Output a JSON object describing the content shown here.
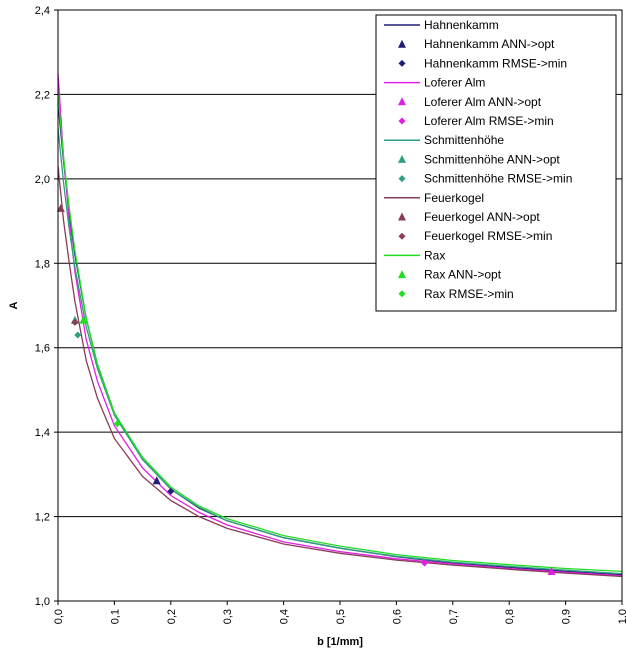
{
  "chart_data": {
    "type": "line",
    "xlabel": "b [1/mm]",
    "ylabel": "A",
    "xlim": [
      0,
      1
    ],
    "ylim": [
      1.0,
      2.4
    ],
    "x_ticks": [
      "0,0",
      "0,1",
      "0,2",
      "0,3",
      "0,4",
      "0,5",
      "0,6",
      "0,7",
      "0,8",
      "0,9",
      "1,0"
    ],
    "y_ticks": [
      "1,0",
      "1,2",
      "1,4",
      "1,6",
      "1,8",
      "2,0",
      "2,2",
      "2,4"
    ],
    "grid": "horizontal major gridlines",
    "legend_position": "top-right",
    "colors": {
      "Hahnenkamm": "#1f1f7a",
      "Loferer Alm": "#e020e0",
      "Schmittenhöhe": "#2e9e82",
      "Feuerkogel": "#8b3a5a",
      "Rax": "#22dd22"
    },
    "curves": [
      {
        "station": "Hahnenkamm",
        "x": [
          0.0,
          0.01,
          0.02,
          0.03,
          0.05,
          0.07,
          0.1,
          0.15,
          0.2,
          0.25,
          0.3,
          0.4,
          0.5,
          0.6,
          0.7,
          0.8,
          0.9,
          1.0
        ],
        "y": [
          2.18,
          2.04,
          1.92,
          1.82,
          1.67,
          1.56,
          1.445,
          1.335,
          1.265,
          1.22,
          1.19,
          1.15,
          1.125,
          1.105,
          1.09,
          1.08,
          1.07,
          1.062
        ]
      },
      {
        "station": "Loferer Alm",
        "x": [
          0.0,
          0.01,
          0.02,
          0.03,
          0.05,
          0.07,
          0.1,
          0.15,
          0.2,
          0.25,
          0.3,
          0.4,
          0.5,
          0.6,
          0.7,
          0.8,
          0.9,
          1.0
        ],
        "y": [
          2.25,
          2.05,
          1.9,
          1.78,
          1.62,
          1.52,
          1.415,
          1.315,
          1.25,
          1.21,
          1.18,
          1.14,
          1.117,
          1.1,
          1.088,
          1.077,
          1.068,
          1.06
        ]
      },
      {
        "station": "Schmittenhöhe",
        "x": [
          0.0,
          0.01,
          0.02,
          0.03,
          0.05,
          0.07,
          0.1,
          0.15,
          0.2,
          0.25,
          0.3,
          0.4,
          0.5,
          0.6,
          0.7,
          0.8,
          0.9,
          1.0
        ],
        "y": [
          2.12,
          1.99,
          1.88,
          1.79,
          1.65,
          1.55,
          1.44,
          1.335,
          1.265,
          1.222,
          1.19,
          1.15,
          1.125,
          1.106,
          1.092,
          1.082,
          1.073,
          1.065
        ]
      },
      {
        "station": "Feuerkogel",
        "x": [
          0.0,
          0.01,
          0.02,
          0.03,
          0.05,
          0.07,
          0.1,
          0.15,
          0.2,
          0.25,
          0.3,
          0.4,
          0.5,
          0.6,
          0.7,
          0.8,
          0.9,
          1.0
        ],
        "y": [
          2.03,
          1.9,
          1.8,
          1.71,
          1.57,
          1.48,
          1.385,
          1.295,
          1.238,
          1.2,
          1.172,
          1.135,
          1.113,
          1.097,
          1.085,
          1.075,
          1.066,
          1.058
        ]
      },
      {
        "station": "Rax",
        "x": [
          0.0,
          0.01,
          0.02,
          0.03,
          0.05,
          0.07,
          0.1,
          0.15,
          0.2,
          0.25,
          0.3,
          0.4,
          0.5,
          0.6,
          0.7,
          0.8,
          0.9,
          1.0
        ],
        "y": [
          2.2,
          2.05,
          1.93,
          1.83,
          1.67,
          1.56,
          1.445,
          1.34,
          1.27,
          1.225,
          1.195,
          1.155,
          1.13,
          1.11,
          1.096,
          1.086,
          1.077,
          1.07
        ]
      }
    ],
    "markers": [
      {
        "station": "Hahnenkamm",
        "kind": "ANN->opt",
        "shape": "triangle",
        "x": 0.175,
        "y": 1.285
      },
      {
        "station": "Hahnenkamm",
        "kind": "RMSE->min",
        "shape": "diamond",
        "x": 0.2,
        "y": 1.26
      },
      {
        "station": "Loferer Alm",
        "kind": "ANN->opt",
        "shape": "triangle",
        "x": 0.875,
        "y": 1.07
      },
      {
        "station": "Loferer Alm",
        "kind": "RMSE->min",
        "shape": "diamond",
        "x": 0.65,
        "y": 1.09
      },
      {
        "station": "Schmittenhöhe",
        "kind": "ANN->opt",
        "shape": "triangle",
        "x": 0.03,
        "y": 1.665
      },
      {
        "station": "Schmittenhöhe",
        "kind": "RMSE->min",
        "shape": "diamond",
        "x": 0.035,
        "y": 1.63
      },
      {
        "station": "Feuerkogel",
        "kind": "ANN->opt",
        "shape": "triangle",
        "x": 0.005,
        "y": 1.93
      },
      {
        "station": "Feuerkogel",
        "kind": "RMSE->min",
        "shape": "diamond",
        "x": 0.03,
        "y": 1.66
      },
      {
        "station": "Rax",
        "kind": "ANN->opt",
        "shape": "triangle",
        "x": 0.045,
        "y": 1.665
      },
      {
        "station": "Rax",
        "kind": "RMSE->min",
        "shape": "diamond",
        "x": 0.105,
        "y": 1.42
      }
    ],
    "legend": [
      {
        "label": "Hahnenkamm",
        "type": "line",
        "color": "#1f1f7a"
      },
      {
        "label": "Hahnenkamm ANN->opt",
        "type": "triangle",
        "color": "#1f1f7a"
      },
      {
        "label": "Hahnenkamm RMSE->min",
        "type": "diamond",
        "color": "#1f1f7a"
      },
      {
        "label": "Loferer Alm",
        "type": "line",
        "color": "#e020e0"
      },
      {
        "label": "Loferer Alm ANN->opt",
        "type": "triangle",
        "color": "#e020e0"
      },
      {
        "label": "Loferer Alm RMSE->min",
        "type": "diamond",
        "color": "#e020e0"
      },
      {
        "label": "Schmittenhöhe",
        "type": "line",
        "color": "#2e9e82"
      },
      {
        "label": "Schmittenhöhe ANN->opt",
        "type": "triangle",
        "color": "#2e9e82"
      },
      {
        "label": "Schmittenhöhe RMSE->min",
        "type": "diamond",
        "color": "#2e9e82"
      },
      {
        "label": "Feuerkogel",
        "type": "line",
        "color": "#8b3a5a"
      },
      {
        "label": "Feuerkogel ANN->opt",
        "type": "triangle",
        "color": "#8b3a5a"
      },
      {
        "label": "Feuerkogel RMSE->min",
        "type": "diamond",
        "color": "#8b3a5a"
      },
      {
        "label": "Rax",
        "type": "line",
        "color": "#22dd22"
      },
      {
        "label": "Rax ANN->opt",
        "type": "triangle",
        "color": "#22dd22"
      },
      {
        "label": "Rax RMSE->min",
        "type": "diamond",
        "color": "#22dd22"
      }
    ]
  }
}
